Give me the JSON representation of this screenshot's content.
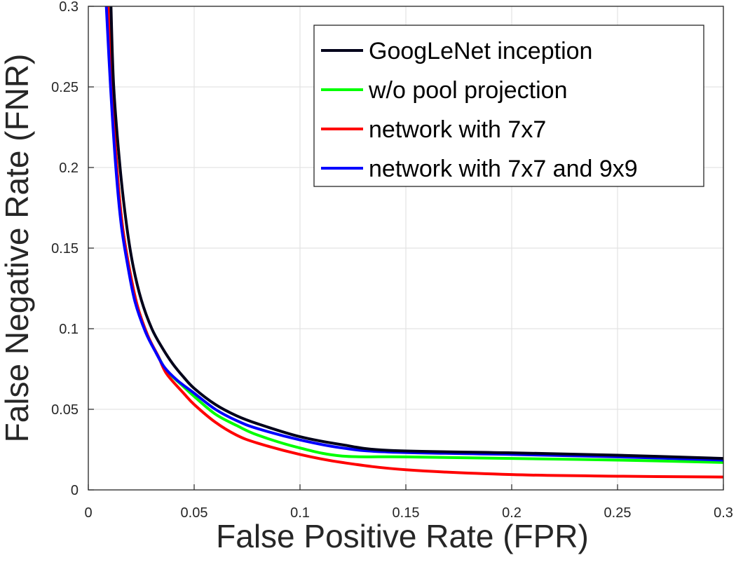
{
  "chart_data": {
    "type": "line",
    "title": "",
    "xlabel": "False Positive Rate (FPR)",
    "ylabel": "False Negative Rate (FNR)",
    "xlim": [
      0,
      0.3
    ],
    "ylim": [
      0,
      0.3
    ],
    "grid": true,
    "legend_position": "top-right",
    "x_ticks": [
      0,
      0.05,
      0.1,
      0.15,
      0.2,
      0.25,
      0.3
    ],
    "x_tick_labels": [
      "0",
      "0.05",
      "0.1",
      "0.15",
      "0.2",
      "0.25",
      "0.3"
    ],
    "y_ticks": [
      0,
      0.05,
      0.1,
      0.15,
      0.2,
      0.25,
      0.3
    ],
    "y_tick_labels": [
      "0",
      "0.05",
      "0.1",
      "0.15",
      "0.2",
      "0.25",
      "0.3"
    ],
    "series": [
      {
        "name": "GoogLeNet inception",
        "color": "#00001a",
        "x": [
          0.0107,
          0.012,
          0.015,
          0.018,
          0.021,
          0.025,
          0.03,
          0.035,
          0.04,
          0.045,
          0.05,
          0.06,
          0.07,
          0.08,
          0.1,
          0.12,
          0.142,
          0.2,
          0.25,
          0.3
        ],
        "y": [
          0.3,
          0.25,
          0.2,
          0.165,
          0.14,
          0.118,
          0.1,
          0.088,
          0.078,
          0.07,
          0.063,
          0.053,
          0.046,
          0.041,
          0.033,
          0.028,
          0.0245,
          0.023,
          0.0215,
          0.0195
        ]
      },
      {
        "name": "w/o pool projection",
        "color": "#00ff00",
        "x": [
          0.0093,
          0.011,
          0.0135,
          0.016,
          0.019,
          0.023,
          0.028,
          0.033,
          0.037,
          0.045,
          0.05,
          0.06,
          0.07,
          0.08,
          0.1,
          0.12,
          0.15,
          0.2,
          0.25,
          0.3
        ],
        "y": [
          0.3,
          0.25,
          0.2,
          0.165,
          0.14,
          0.115,
          0.096,
          0.083,
          0.074,
          0.064,
          0.058,
          0.047,
          0.04,
          0.034,
          0.026,
          0.021,
          0.0205,
          0.0195,
          0.0185,
          0.017
        ]
      },
      {
        "name": "network with 7x7",
        "color": "#ff0000",
        "x": [
          0.0093,
          0.011,
          0.0135,
          0.016,
          0.019,
          0.023,
          0.028,
          0.033,
          0.037,
          0.045,
          0.05,
          0.06,
          0.07,
          0.08,
          0.1,
          0.12,
          0.15,
          0.2,
          0.25,
          0.3
        ],
        "y": [
          0.3,
          0.25,
          0.2,
          0.165,
          0.14,
          0.115,
          0.096,
          0.083,
          0.072,
          0.06,
          0.053,
          0.042,
          0.034,
          0.029,
          0.022,
          0.017,
          0.0125,
          0.0095,
          0.0085,
          0.008
        ]
      },
      {
        "name": "network with 7x7 and 9x9",
        "color": "#0000ff",
        "x": [
          0.0085,
          0.0105,
          0.013,
          0.0155,
          0.0185,
          0.022,
          0.027,
          0.032,
          0.036,
          0.042,
          0.05,
          0.06,
          0.07,
          0.08,
          0.1,
          0.12,
          0.142,
          0.2,
          0.25,
          0.3
        ],
        "y": [
          0.3,
          0.25,
          0.2,
          0.165,
          0.14,
          0.117,
          0.098,
          0.085,
          0.076,
          0.068,
          0.06,
          0.05,
          0.043,
          0.038,
          0.031,
          0.026,
          0.0235,
          0.022,
          0.0205,
          0.0185
        ]
      }
    ]
  }
}
